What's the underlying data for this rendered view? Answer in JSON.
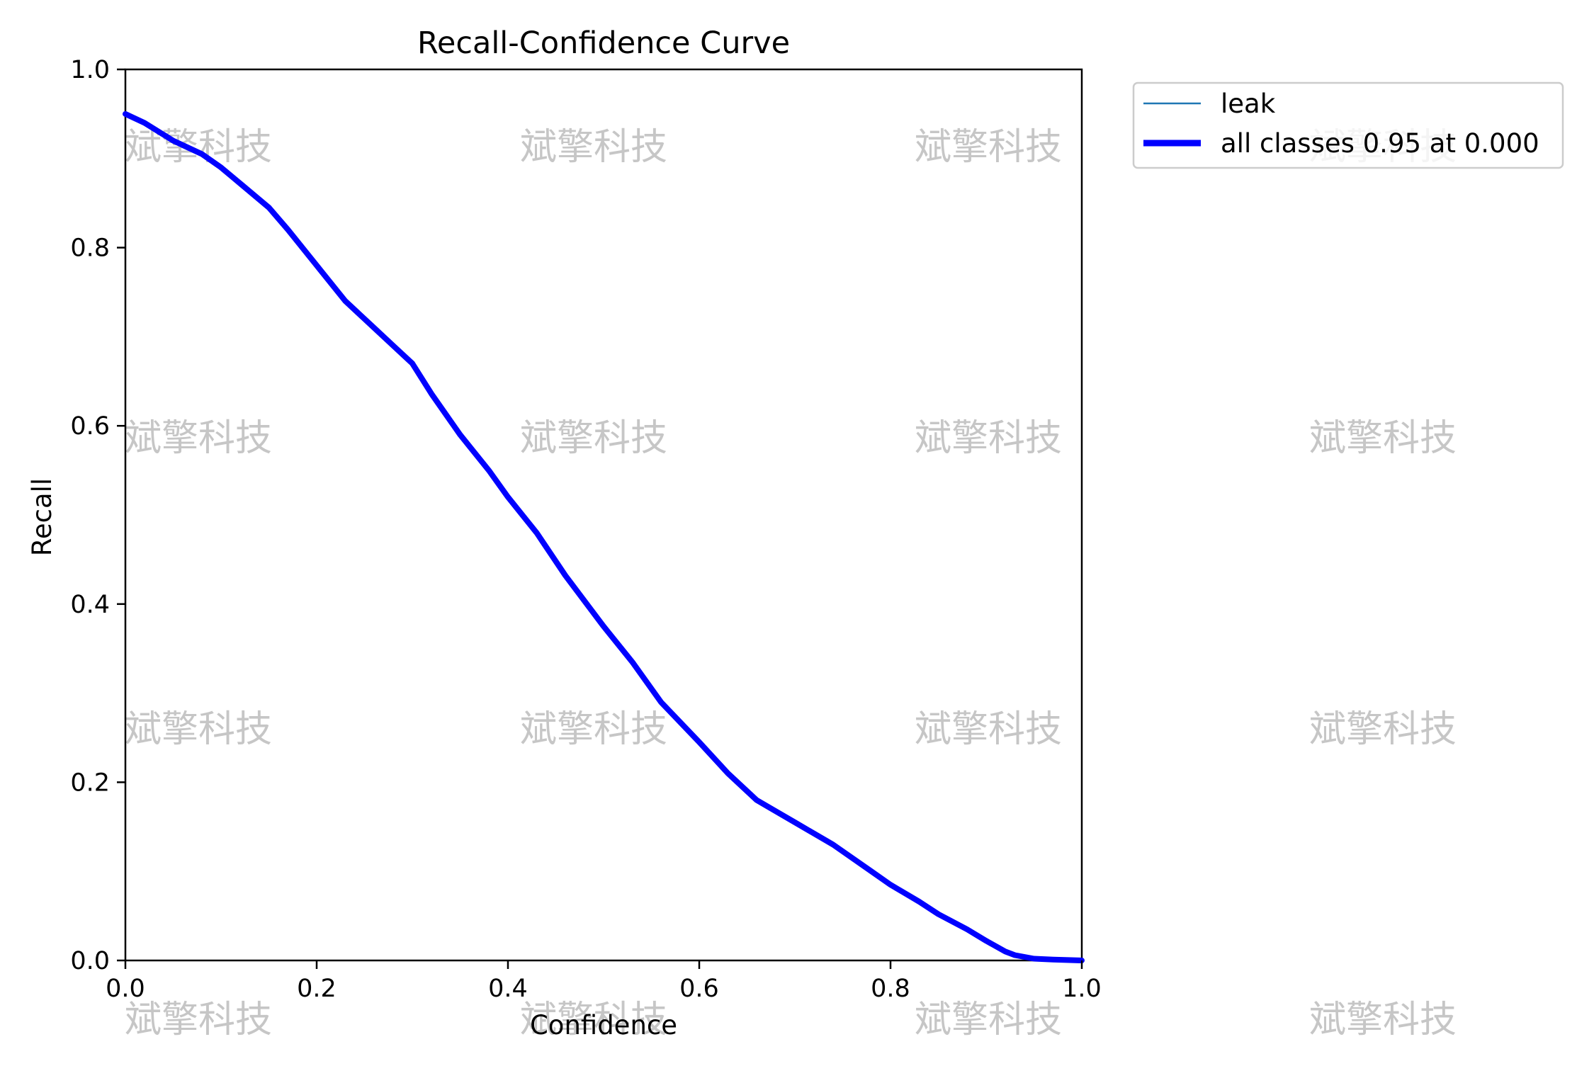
{
  "chart_data": {
    "type": "line",
    "title": "Recall-Confidence Curve",
    "xlabel": "Confidence",
    "ylabel": "Recall",
    "xlim": [
      0,
      1
    ],
    "ylim": [
      0,
      1
    ],
    "xticks": [
      "0.0",
      "0.2",
      "0.4",
      "0.6",
      "0.8",
      "1.0"
    ],
    "yticks": [
      "0.0",
      "0.2",
      "0.4",
      "0.6",
      "0.8",
      "1.0"
    ],
    "grid": false,
    "legend_position": "outside-top-right",
    "series": [
      {
        "name": "leak",
        "color": "#1f77b4",
        "line_width": "thin",
        "x": [
          0.0,
          0.02,
          0.05,
          0.08,
          0.1,
          0.12,
          0.15,
          0.17,
          0.2,
          0.23,
          0.26,
          0.28,
          0.3,
          0.32,
          0.35,
          0.38,
          0.4,
          0.43,
          0.46,
          0.5,
          0.53,
          0.56,
          0.6,
          0.63,
          0.66,
          0.7,
          0.74,
          0.78,
          0.8,
          0.83,
          0.85,
          0.88,
          0.9,
          0.92,
          0.93,
          0.95,
          0.97,
          1.0
        ],
        "y": [
          0.95,
          0.94,
          0.92,
          0.905,
          0.89,
          0.872,
          0.845,
          0.82,
          0.78,
          0.74,
          0.71,
          0.69,
          0.67,
          0.636,
          0.59,
          0.55,
          0.52,
          0.48,
          0.432,
          0.375,
          0.335,
          0.29,
          0.245,
          0.21,
          0.18,
          0.155,
          0.13,
          0.1,
          0.085,
          0.066,
          0.052,
          0.035,
          0.022,
          0.01,
          0.006,
          0.002,
          0.001,
          0.0
        ]
      },
      {
        "name": "all classes 0.95 at 0.000",
        "color": "#0000ff",
        "line_width": "thick",
        "x": [
          0.0,
          0.02,
          0.05,
          0.08,
          0.1,
          0.12,
          0.15,
          0.17,
          0.2,
          0.23,
          0.26,
          0.28,
          0.3,
          0.32,
          0.35,
          0.38,
          0.4,
          0.43,
          0.46,
          0.5,
          0.53,
          0.56,
          0.6,
          0.63,
          0.66,
          0.7,
          0.74,
          0.78,
          0.8,
          0.83,
          0.85,
          0.88,
          0.9,
          0.92,
          0.93,
          0.95,
          0.97,
          1.0
        ],
        "y": [
          0.95,
          0.94,
          0.92,
          0.905,
          0.89,
          0.872,
          0.845,
          0.82,
          0.78,
          0.74,
          0.71,
          0.69,
          0.67,
          0.636,
          0.59,
          0.55,
          0.52,
          0.48,
          0.432,
          0.375,
          0.335,
          0.29,
          0.245,
          0.21,
          0.18,
          0.155,
          0.13,
          0.1,
          0.085,
          0.066,
          0.052,
          0.035,
          0.022,
          0.01,
          0.006,
          0.002,
          0.001,
          0.0
        ]
      }
    ]
  },
  "watermark": {
    "text": "斌擎科技"
  }
}
